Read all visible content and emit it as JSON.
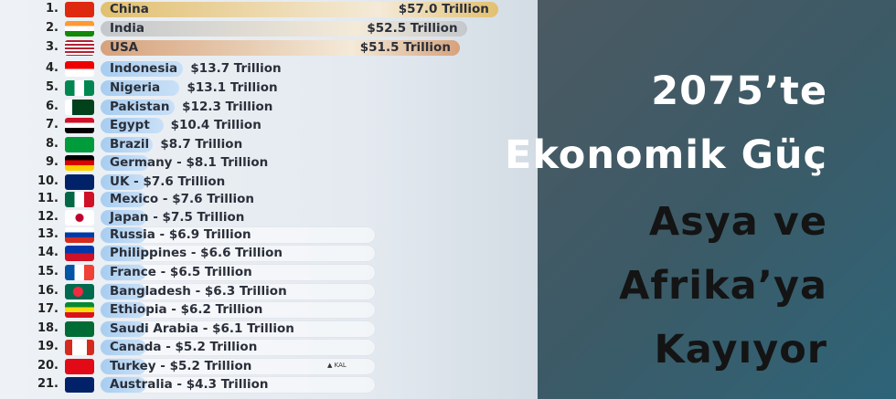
{
  "chart_data": {
    "type": "bar",
    "orientation": "horizontal",
    "categories": [
      "China",
      "India",
      "USA",
      "Indonesia",
      "Nigeria",
      "Pakistan",
      "Egypt",
      "Brazil",
      "Germany",
      "UK",
      "Mexico",
      "Japan",
      "Russia",
      "Philippines",
      "France",
      "Bangladesh",
      "Ethiopia",
      "Saudi Arabia",
      "Canada",
      "Turkey",
      "Australia"
    ],
    "values": [
      57.0,
      52.5,
      51.5,
      13.7,
      13.1,
      12.3,
      10.4,
      8.7,
      8.1,
      7.6,
      7.6,
      7.5,
      6.9,
      6.6,
      6.5,
      6.3,
      6.2,
      6.1,
      5.2,
      5.2,
      4.3
    ],
    "labels": [
      "$57.0 Trillion",
      "$52.5 Trillion",
      "$51.5 Trillion",
      "$13.7 Trillion",
      "$13.1 Trillion",
      "$12.3 Trillion",
      "$10.4 Trillion",
      "$8.7 Trillion",
      "$8.1 Trillion",
      "$7.6 Trillion",
      "$7.6 Trillion",
      "$7.5 Trillion",
      "$6.9 Trillion",
      "$6.6 Trillion",
      "$6.5 Trillion",
      "$6.3 Trillion",
      "$6.2 Trillion",
      "$6.1 Trillion",
      "$5.2 Trillion",
      "$5.2 Trillion",
      "$4.3 Trillion"
    ],
    "ranks": [
      "1.",
      "2.",
      "3.",
      "4.",
      "5.",
      "6.",
      "7.",
      "8.",
      "9.",
      "10.",
      "11.",
      "12.",
      "13.",
      "14.",
      "15.",
      "16.",
      "17.",
      "18.",
      "19.",
      "20.",
      "21."
    ],
    "bar_colors": {
      "gold": "#e2c070",
      "silver": "#c4c8cc",
      "bronze": "#d6a27c",
      "blue": "#a8cdf0"
    }
  },
  "title": {
    "lines": [
      "2075’te",
      "Ekonomik Güç",
      "Asya ve",
      "Afrika’ya",
      "Kayıyor"
    ],
    "colors": [
      "#ffffff",
      "#ffffff",
      "#141414",
      "#141414",
      "#141414"
    ]
  },
  "logo": {
    "text": "KAL"
  }
}
